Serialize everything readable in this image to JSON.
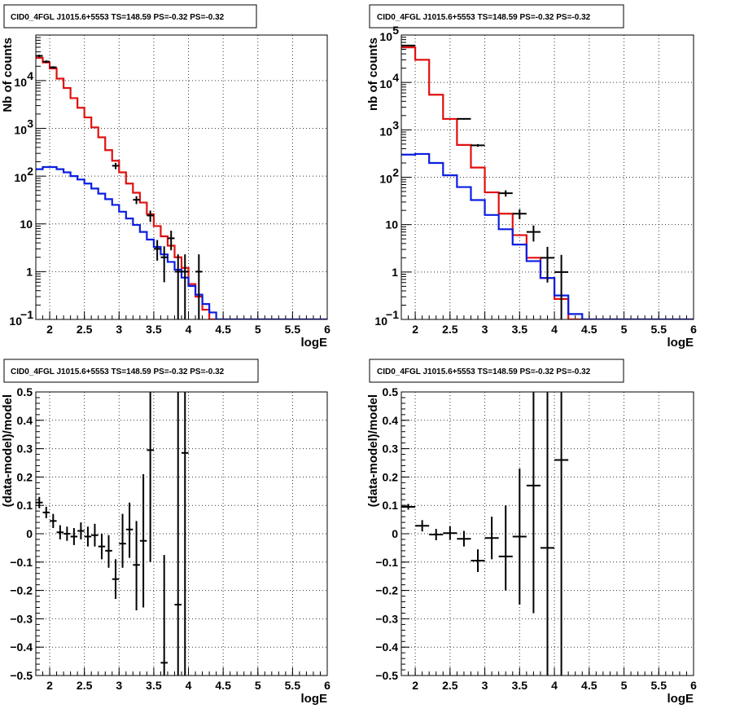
{
  "colors": {
    "data": "#000000",
    "total_model": "#e01010",
    "source_model": "#0a1ee0",
    "background": "#ffffff"
  },
  "chart_data": [
    {
      "type": "line",
      "title": "CID0_4FGL J1015.6+5553 TS=148.59 PS=-0.32 PS=-0.32",
      "xlabel": "logE",
      "ylabel": "Nb of counts",
      "xlim": [
        1.8,
        6
      ],
      "ylim": [
        0.1,
        90000
      ],
      "yscale": "log",
      "grid": true,
      "xticks": [
        "2",
        "2.5",
        "3",
        "3.5",
        "4",
        "4.5",
        "5",
        "5.5",
        "6"
      ],
      "yticks": [
        {
          "value": 0.1,
          "label": "10",
          "sup": "−1"
        },
        {
          "value": 1,
          "label": "1",
          "sup": ""
        },
        {
          "value": 10,
          "label": "10",
          "sup": ""
        },
        {
          "value": 100,
          "label": "10",
          "sup": "2"
        },
        {
          "value": 1000,
          "label": "10",
          "sup": "3"
        },
        {
          "value": 10000,
          "label": "10",
          "sup": "4"
        }
      ],
      "bin_edges": [
        1.8,
        1.9,
        2.0,
        2.1,
        2.2,
        2.3,
        2.4,
        2.5,
        2.6,
        2.7,
        2.8,
        2.9,
        3.0,
        3.1,
        3.2,
        3.3,
        3.4,
        3.5,
        3.6,
        3.7,
        3.8,
        3.9,
        4.0,
        4.1,
        4.2,
        4.3,
        4.4,
        4.5,
        4.6,
        4.7,
        4.8,
        4.9,
        5.0,
        5.1,
        5.2,
        5.3,
        5.4,
        5.5,
        5.6,
        5.7,
        5.8,
        5.9,
        6.0
      ],
      "series": [
        {
          "kind": "step",
          "color_key": "total_model",
          "values": [
            30000,
            24000,
            18000,
            11000,
            7000,
            4300,
            2700,
            1700,
            1050,
            650,
            350,
            210,
            120,
            70,
            45,
            28,
            16,
            9,
            5.5,
            3.5,
            2.0,
            1.2,
            0.55,
            0.3,
            0.16,
            0.1,
            0.1,
            0.1,
            0.1,
            0.1,
            0.1,
            0.1,
            0.1,
            0.1,
            0.1,
            0.1,
            0.1,
            0.1,
            0.1,
            0.1,
            0.1,
            0.1
          ]
        },
        {
          "kind": "step",
          "color_key": "source_model",
          "values": [
            140,
            155,
            155,
            140,
            120,
            100,
            85,
            70,
            55,
            43,
            33,
            25,
            18,
            13,
            9.5,
            6.8,
            4.7,
            3.3,
            2.3,
            1.6,
            1.1,
            0.75,
            0.5,
            0.33,
            0.21,
            0.14,
            0.1,
            0.1,
            0.1,
            0.1,
            0.1,
            0.1,
            0.1,
            0.1,
            0.1,
            0.1,
            0.1,
            0.1,
            0.1,
            0.1,
            0.1,
            0.1
          ]
        },
        {
          "kind": "points",
          "color_key": "data",
          "points": [
            {
              "x": 1.85,
              "y": 33000,
              "lo": 31000,
              "hi": 35000
            },
            {
              "x": 1.95,
              "y": 25000,
              "lo": 23500,
              "hi": 26500
            },
            {
              "x": 2.05,
              "y": 19000,
              "lo": 18000,
              "hi": 20000
            },
            {
              "x": 2.95,
              "y": 165,
              "lo": 140,
              "hi": 190
            },
            {
              "x": 3.25,
              "y": 32,
              "lo": 26,
              "hi": 38
            },
            {
              "x": 3.45,
              "y": 15,
              "lo": 11,
              "hi": 19
            },
            {
              "x": 3.55,
              "y": 3.0,
              "lo": 1.7,
              "hi": 4.6
            },
            {
              "x": 3.65,
              "y": 2.0,
              "lo": 0.6,
              "hi": 3.4
            },
            {
              "x": 3.75,
              "y": 5.0,
              "lo": 2.8,
              "hi": 7.2
            },
            {
              "x": 3.85,
              "y": 1.0,
              "lo": 0.1,
              "hi": 2.3
            },
            {
              "x": 3.95,
              "y": 1.0,
              "lo": 0.1,
              "hi": 2.3
            },
            {
              "x": 4.15,
              "y": 1.0,
              "lo": 0.1,
              "hi": 2.3
            }
          ]
        }
      ]
    },
    {
      "type": "line",
      "title": "CID0_4FGL J1015.6+5553 TS=148.59 PS=-0.32 PS=-0.32",
      "xlabel": "logE",
      "ylabel": "nb of counts",
      "xlim": [
        1.8,
        6
      ],
      "ylim": [
        0.1,
        100000
      ],
      "yscale": "log",
      "grid": true,
      "xticks": [
        "2",
        "2.5",
        "3",
        "3.5",
        "4",
        "4.5",
        "5",
        "5.5",
        "6"
      ],
      "yticks": [
        {
          "value": 0.1,
          "label": "10",
          "sup": "−1"
        },
        {
          "value": 1,
          "label": "1",
          "sup": ""
        },
        {
          "value": 10,
          "label": "10",
          "sup": ""
        },
        {
          "value": 100,
          "label": "10",
          "sup": "2"
        },
        {
          "value": 1000,
          "label": "10",
          "sup": "3"
        },
        {
          "value": 10000,
          "label": "10",
          "sup": "4"
        },
        {
          "value": 100000,
          "label": "10",
          "sup": "5"
        }
      ],
      "bin_edges": [
        1.8,
        2.0,
        2.2,
        2.4,
        2.6,
        2.8,
        3.0,
        3.2,
        3.4,
        3.6,
        3.8,
        4.0,
        4.2,
        4.4,
        4.6,
        4.8,
        5.0,
        5.2,
        5.4,
        5.6,
        5.8,
        6.0
      ],
      "series": [
        {
          "kind": "step",
          "color_key": "total_model",
          "values": [
            55000,
            30000,
            5500,
            1700,
            480,
            160,
            48,
            17,
            6.0,
            2.0,
            0.75,
            0.27,
            0.1,
            0.1,
            0.1,
            0.1,
            0.1,
            0.1,
            0.1,
            0.1,
            0.1
          ]
        },
        {
          "kind": "step",
          "color_key": "source_model",
          "values": [
            300,
            310,
            200,
            110,
            62,
            33,
            16,
            8.0,
            3.8,
            1.7,
            0.75,
            0.32,
            0.13,
            0.1,
            0.1,
            0.1,
            0.1,
            0.1,
            0.1,
            0.1,
            0.1
          ]
        },
        {
          "kind": "points",
          "color_key": "data",
          "points": [
            {
              "x": 1.9,
              "y": 60000,
              "lo": 58500,
              "hi": 61500
            },
            {
              "x": 2.7,
              "y": 1700,
              "lo": 1640,
              "hi": 1760
            },
            {
              "x": 2.9,
              "y": 470,
              "lo": 440,
              "hi": 500
            },
            {
              "x": 3.3,
              "y": 46,
              "lo": 39,
              "hi": 53
            },
            {
              "x": 3.5,
              "y": 17,
              "lo": 13,
              "hi": 21
            },
            {
              "x": 3.7,
              "y": 7.0,
              "lo": 4.4,
              "hi": 9.6
            },
            {
              "x": 3.9,
              "y": 2.0,
              "lo": 0.6,
              "hi": 3.4
            },
            {
              "x": 4.1,
              "y": 1.0,
              "lo": 0.1,
              "hi": 2.3
            }
          ]
        }
      ]
    },
    {
      "type": "scatter",
      "title": "CID0_4FGL J1015.6+5553 TS=148.59 PS=-0.32 PS=-0.32",
      "xlabel": "logE",
      "ylabel": "(data-model)/model",
      "xlim": [
        1.8,
        6
      ],
      "ylim": [
        -0.5,
        0.5
      ],
      "yscale": "linear",
      "grid": true,
      "xticks": [
        "2",
        "2.5",
        "3",
        "3.5",
        "4",
        "4.5",
        "5",
        "5.5",
        "6"
      ],
      "yticks": [
        "−0.5",
        "−0.4",
        "−0.3",
        "−0.2",
        "−0.1",
        "0",
        "0.1",
        "0.2",
        "0.3",
        "0.4",
        "0.5"
      ],
      "x_half_width": 0.05,
      "points": [
        {
          "x": 1.85,
          "y": 0.11,
          "lo": 0.09,
          "hi": 0.13
        },
        {
          "x": 1.95,
          "y": 0.075,
          "lo": 0.055,
          "hi": 0.095
        },
        {
          "x": 2.05,
          "y": 0.045,
          "lo": 0.02,
          "hi": 0.07
        },
        {
          "x": 2.15,
          "y": 0.005,
          "lo": -0.02,
          "hi": 0.03
        },
        {
          "x": 2.25,
          "y": 0.0,
          "lo": -0.025,
          "hi": 0.025
        },
        {
          "x": 2.35,
          "y": -0.01,
          "lo": -0.04,
          "hi": 0.02
        },
        {
          "x": 2.45,
          "y": 0.01,
          "lo": -0.02,
          "hi": 0.04
        },
        {
          "x": 2.55,
          "y": -0.01,
          "lo": -0.045,
          "hi": 0.025
        },
        {
          "x": 2.65,
          "y": -0.005,
          "lo": -0.045,
          "hi": 0.035
        },
        {
          "x": 2.75,
          "y": -0.045,
          "lo": -0.09,
          "hi": 0.0
        },
        {
          "x": 2.85,
          "y": -0.06,
          "lo": -0.12,
          "hi": -0.005
        },
        {
          "x": 2.95,
          "y": -0.16,
          "lo": -0.23,
          "hi": -0.09
        },
        {
          "x": 3.05,
          "y": -0.035,
          "lo": -0.12,
          "hi": 0.07
        },
        {
          "x": 3.15,
          "y": 0.015,
          "lo": -0.085,
          "hi": 0.11
        },
        {
          "x": 3.25,
          "y": -0.11,
          "lo": -0.27,
          "hi": 0.045
        },
        {
          "x": 3.35,
          "y": -0.025,
          "lo": -0.26,
          "hi": 0.21
        },
        {
          "x": 3.45,
          "y": 0.295,
          "lo": -0.1,
          "hi": 0.5
        },
        {
          "x": 3.65,
          "y": -0.455,
          "lo": -0.5,
          "hi": -0.075
        },
        {
          "x": 3.85,
          "y": -0.25,
          "lo": -0.5,
          "hi": 0.5
        },
        {
          "x": 3.95,
          "y": 0.285,
          "lo": -0.5,
          "hi": 0.5
        }
      ]
    },
    {
      "type": "scatter",
      "title": "CID0_4FGL J1015.6+5553 TS=148.59 PS=-0.32 PS=-0.32",
      "xlabel": "logE",
      "ylabel": "(data-model)/model",
      "xlim": [
        1.8,
        6
      ],
      "ylim": [
        -0.5,
        0.5
      ],
      "yscale": "linear",
      "grid": true,
      "xticks": [
        "2",
        "2.5",
        "3",
        "3.5",
        "4",
        "4.5",
        "5",
        "5.5",
        "6"
      ],
      "yticks": [
        "−0.5",
        "−0.4",
        "−0.3",
        "−0.2",
        "−0.1",
        "0",
        "0.1",
        "0.2",
        "0.3",
        "0.4",
        "0.5"
      ],
      "x_half_width": 0.1,
      "points": [
        {
          "x": 1.9,
          "y": 0.095,
          "lo": 0.085,
          "hi": 0.105
        },
        {
          "x": 2.1,
          "y": 0.028,
          "lo": 0.008,
          "hi": 0.048
        },
        {
          "x": 2.3,
          "y": -0.003,
          "lo": -0.023,
          "hi": 0.017
        },
        {
          "x": 2.5,
          "y": 0.002,
          "lo": -0.022,
          "hi": 0.026
        },
        {
          "x": 2.7,
          "y": -0.018,
          "lo": -0.045,
          "hi": 0.01
        },
        {
          "x": 2.9,
          "y": -0.095,
          "lo": -0.135,
          "hi": -0.055
        },
        {
          "x": 3.1,
          "y": -0.015,
          "lo": -0.09,
          "hi": 0.06
        },
        {
          "x": 3.3,
          "y": -0.08,
          "lo": -0.2,
          "hi": 0.1
        },
        {
          "x": 3.5,
          "y": -0.01,
          "lo": -0.25,
          "hi": 0.23
        },
        {
          "x": 3.7,
          "y": 0.17,
          "lo": -0.28,
          "hi": 0.5
        },
        {
          "x": 3.9,
          "y": -0.05,
          "lo": -0.5,
          "hi": 0.5
        },
        {
          "x": 4.1,
          "y": 0.26,
          "lo": -0.5,
          "hi": 0.5
        }
      ]
    }
  ]
}
